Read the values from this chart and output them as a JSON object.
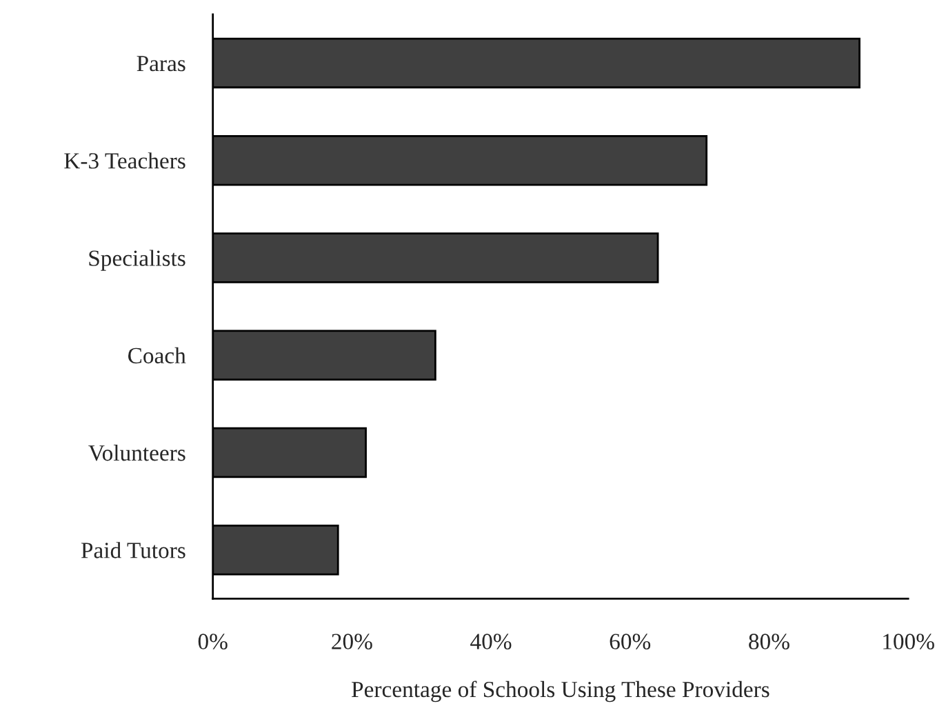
{
  "chart_data": {
    "type": "bar",
    "orientation": "horizontal",
    "xlabel": "Percentage of Schools Using These Providers",
    "categories": [
      "Paras",
      "K-3 Teachers",
      "Specialists",
      "Coach",
      "Volunteers",
      "Paid Tutors"
    ],
    "values": [
      93,
      71,
      64,
      32,
      22,
      18
    ],
    "color": "#404040",
    "xlim": [
      0,
      100
    ],
    "xticks": [
      {
        "value": 0,
        "label": "0%"
      },
      {
        "value": 20,
        "label": "20%"
      },
      {
        "value": 40,
        "label": "40%"
      },
      {
        "value": 60,
        "label": "60%"
      },
      {
        "value": 80,
        "label": "80%"
      },
      {
        "value": 100,
        "label": "100%"
      }
    ],
    "grid": false,
    "legend": false
  }
}
